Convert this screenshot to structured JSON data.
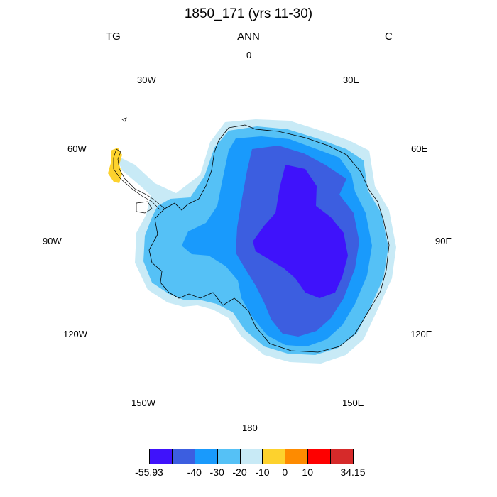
{
  "title": "1850_171 (yrs 11-30)",
  "header": {
    "left": "TG",
    "center": "ANN",
    "right": "C"
  },
  "longitude_labels": [
    "0",
    "30E",
    "60E",
    "90E",
    "120E",
    "150E",
    "180",
    "150W",
    "120W",
    "90W",
    "60W",
    "30W"
  ],
  "colorbar": {
    "colors": [
      "#3f12fb",
      "#3c5ee0",
      "#199afc",
      "#55c1f6",
      "#c8eaf6",
      "#fdd22d",
      "#fe8b00",
      "#fe0000",
      "#d62a2a"
    ],
    "labels": [
      "-55.93",
      "-40",
      "-30",
      "-20",
      "-10",
      "0",
      "10",
      "34.15"
    ]
  }
}
